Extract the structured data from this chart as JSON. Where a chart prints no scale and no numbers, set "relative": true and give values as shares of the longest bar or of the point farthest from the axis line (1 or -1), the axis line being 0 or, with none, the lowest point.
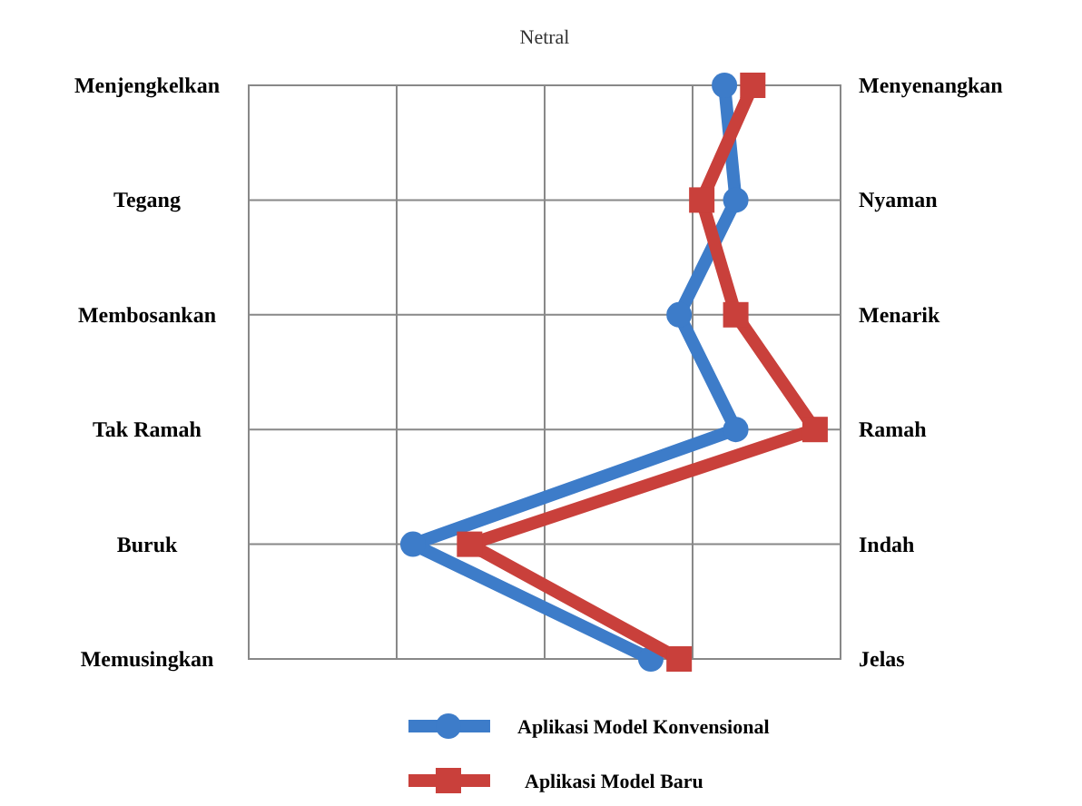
{
  "chart_data": {
    "type": "line",
    "orientation": "horizontal",
    "relative": true,
    "title": "Netral",
    "grid": true,
    "legend": "bottom",
    "categories": [
      "Menjengkelkan",
      "Tegang",
      "Membosankan",
      "Tak Ramah",
      "Buruk",
      "Memusingkan"
    ],
    "y2_categories": [
      "Menyenangkan",
      "Nyaman",
      "Menarik",
      "Ramah",
      "Indah",
      "Jelas"
    ],
    "series": [
      {
        "name": "Aplikasi Model Konvensional",
        "color": "#3d7cc9",
        "marker": "circle",
        "values": [
          0.84,
          0.86,
          0.76,
          0.86,
          0.29,
          0.71
        ]
      },
      {
        "name": "Aplikasi Model Baru",
        "color": "#c9403b",
        "marker": "square",
        "values": [
          0.89,
          0.8,
          0.86,
          1,
          0.39,
          0.76
        ]
      }
    ]
  }
}
